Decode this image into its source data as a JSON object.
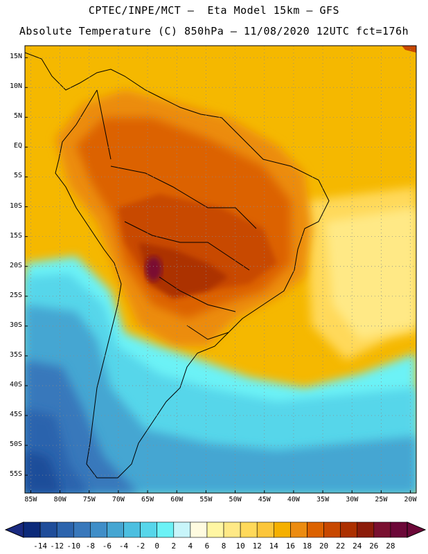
{
  "header": {
    "line1": "CPTEC/INPE/MCT –  Eta Model 15km – GFS",
    "line2": "Absolute Temperature (C) 850hPa – 11/08/2020 12UTC fct=176h"
  },
  "map": {
    "lat_labels": [
      "15N",
      "10N",
      "5N",
      "EQ",
      "5S",
      "10S",
      "15S",
      "20S",
      "25S",
      "30S",
      "35S",
      "40S",
      "45S",
      "50S",
      "55S"
    ],
    "lat_values": [
      15,
      10,
      5,
      0,
      -5,
      -10,
      -15,
      -20,
      -25,
      -30,
      -35,
      -40,
      -45,
      -50,
      -55
    ],
    "lon_labels": [
      "85W",
      "80W",
      "75W",
      "70W",
      "65W",
      "60W",
      "55W",
      "50W",
      "45W",
      "40W",
      "35W",
      "30W",
      "25W",
      "20W"
    ],
    "lon_values": [
      -85,
      -80,
      -75,
      -70,
      -65,
      -60,
      -55,
      -50,
      -45,
      -40,
      -35,
      -30,
      -25,
      -20
    ],
    "lat_range": [
      -58,
      17
    ],
    "lon_range": [
      -86,
      -19
    ],
    "grid": true,
    "base_color": "#f5b800"
  },
  "colorbar": {
    "labels": [
      "-14",
      "-12",
      "-10",
      "-8",
      "-6",
      "-4",
      "-2",
      "0",
      "2",
      "4",
      "6",
      "8",
      "10",
      "12",
      "14",
      "16",
      "18",
      "20",
      "22",
      "24",
      "26",
      "28"
    ],
    "colors": [
      "#0c2a7a",
      "#1f4d9a",
      "#2c64ad",
      "#3878bb",
      "#3f8ec8",
      "#45a6d2",
      "#4cbfe0",
      "#57d6ea",
      "#6cf2f6",
      "#c8f5fa",
      "#fffbe0",
      "#fff6a3",
      "#ffe986",
      "#ffd95a",
      "#fcc63a",
      "#f5b000",
      "#ec8c10",
      "#dc6200",
      "#c84800",
      "#ac3000",
      "#8c1c0a",
      "#7a1030",
      "#6c0838"
    ],
    "low_arrow_color": "#1a2a80",
    "high_arrow_color": "#6c0838"
  }
}
